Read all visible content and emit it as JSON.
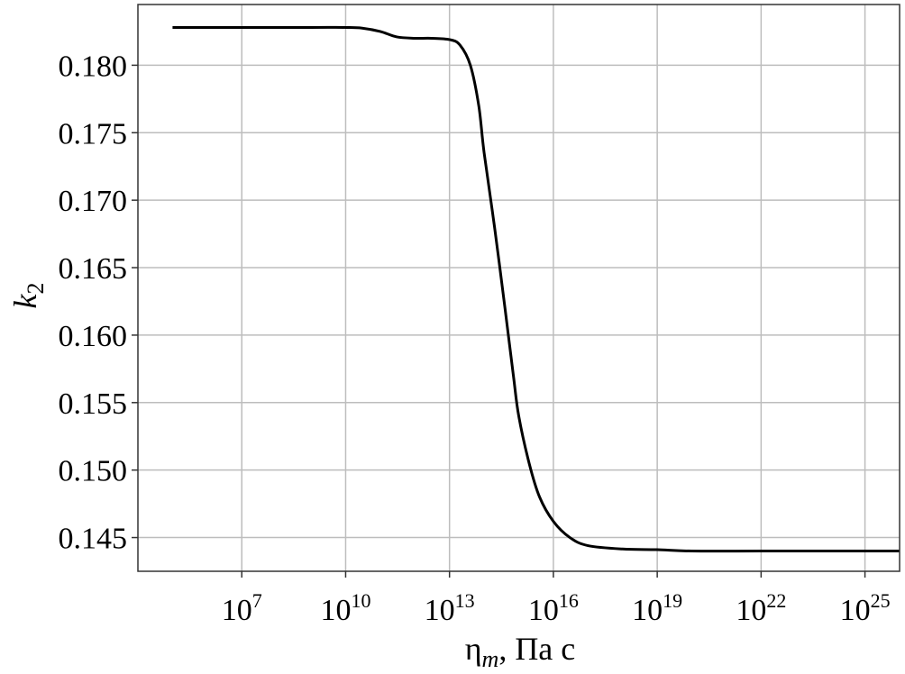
{
  "chart_data": {
    "type": "line",
    "xscale": "log10",
    "xlim": [
      10000.0,
      1e+26
    ],
    "ylim": [
      0.1425,
      0.1845
    ],
    "grid": true,
    "legend": "none",
    "xlabel": {
      "main": "η",
      "sub": "m",
      "rest": ", Па с"
    },
    "ylabel": {
      "main": "k",
      "sub": "2"
    },
    "xticks": [
      {
        "value": 10000000.0,
        "base": "10",
        "exp": "7"
      },
      {
        "value": 10000000000.0,
        "base": "10",
        "exp": "10"
      },
      {
        "value": 10000000000000.0,
        "base": "10",
        "exp": "13"
      },
      {
        "value": 1e+16,
        "base": "10",
        "exp": "16"
      },
      {
        "value": 1e+19,
        "base": "10",
        "exp": "19"
      },
      {
        "value": 1e+22,
        "base": "10",
        "exp": "22"
      },
      {
        "value": 1e+25,
        "base": "10",
        "exp": "25"
      }
    ],
    "yticks": [
      {
        "value": 0.145,
        "label": "0.145"
      },
      {
        "value": 0.15,
        "label": "0.150"
      },
      {
        "value": 0.155,
        "label": "0.155"
      },
      {
        "value": 0.16,
        "label": "0.160"
      },
      {
        "value": 0.165,
        "label": "0.165"
      },
      {
        "value": 0.17,
        "label": "0.170"
      },
      {
        "value": 0.175,
        "label": "0.175"
      },
      {
        "value": 0.18,
        "label": "0.180"
      }
    ],
    "series": [
      {
        "color": "#000000",
        "points": [
          [
            100000.0,
            0.1828
          ],
          [
            10000000.0,
            0.1828
          ],
          [
            1000000000.0,
            0.1828
          ],
          [
            10000000000.0,
            0.1828
          ],
          [
            30000000000.0,
            0.18275
          ],
          [
            100000000000.0,
            0.1825
          ],
          [
            300000000000.0,
            0.1821
          ],
          [
            1000000000000.0,
            0.182
          ],
          [
            3000000000000.0,
            0.182
          ],
          [
            10000000000000.0,
            0.1819
          ],
          [
            20000000000000.0,
            0.1815
          ],
          [
            40000000000000.0,
            0.18
          ],
          [
            70000000000000.0,
            0.177
          ],
          [
            100000000000000.0,
            0.1735
          ],
          [
            200000000000000.0,
            0.168
          ],
          [
            400000000000000.0,
            0.162
          ],
          [
            700000000000000.0,
            0.157
          ],
          [
            1000000000000000.0,
            0.154
          ],
          [
            2000000000000000.0,
            0.1505
          ],
          [
            4000000000000000.0,
            0.148
          ],
          [
            1e+16,
            0.1462
          ],
          [
            3e+16,
            0.145
          ],
          [
            1e+17,
            0.1444
          ],
          [
            1e+18,
            0.14415
          ],
          [
            1e+19,
            0.1441
          ],
          [
            1e+20,
            0.144
          ],
          [
            1e+22,
            0.144
          ],
          [
            1e+24,
            0.144
          ],
          [
            1e+26,
            0.144
          ]
        ]
      }
    ]
  }
}
